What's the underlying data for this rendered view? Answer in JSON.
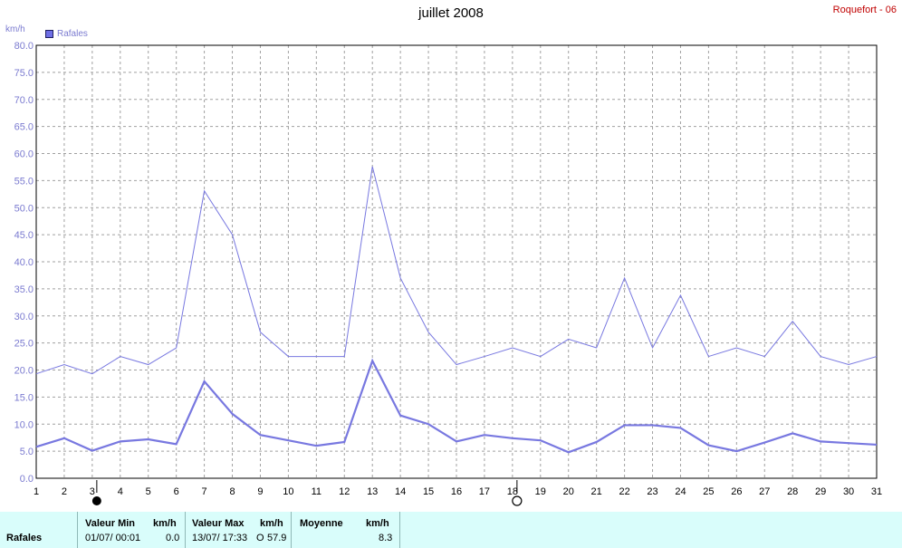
{
  "header": {
    "title": "juillet 2008",
    "station": "Roquefort - 06",
    "unit": "km/h",
    "legend": "Rafales"
  },
  "colors": {
    "series": "#7878e0",
    "grid": "#a0a0a0",
    "axis_text": "#7b7bd0",
    "station_text": "#c00000",
    "stats_bg": "#d9fdfb"
  },
  "chart_data": {
    "type": "line",
    "title": "juillet 2008",
    "ylabel": "km/h",
    "legend": [
      "Rafales"
    ],
    "x": [
      1,
      2,
      3,
      4,
      5,
      6,
      7,
      8,
      9,
      10,
      11,
      12,
      13,
      14,
      15,
      16,
      17,
      18,
      19,
      20,
      21,
      22,
      23,
      24,
      25,
      26,
      27,
      28,
      29,
      30,
      31
    ],
    "xlim": [
      1,
      31
    ],
    "ylim": [
      0,
      80
    ],
    "yticks": [
      "0.0",
      "5.0",
      "10.0",
      "15.0",
      "20.0",
      "25.0",
      "30.0",
      "35.0",
      "40.0",
      "45.0",
      "50.0",
      "55.0",
      "60.0",
      "65.0",
      "70.0",
      "75.0",
      "80.0"
    ],
    "series": [
      {
        "role": "max",
        "values": [
          19.3,
          21.0,
          19.3,
          22.5,
          21.0,
          24.1,
          53.1,
          45.0,
          27.0,
          22.5,
          22.5,
          22.5,
          57.6,
          37.0,
          27.0,
          21.0,
          22.5,
          24.1,
          22.5,
          25.7,
          24.1,
          37.0,
          24.1,
          33.8,
          22.5,
          24.1,
          22.5,
          29.0,
          22.5,
          21.0,
          22.5
        ]
      },
      {
        "role": "mean",
        "values": [
          5.8,
          7.4,
          5.1,
          6.8,
          7.2,
          6.3,
          17.9,
          11.9,
          8.0,
          7.0,
          6.0,
          6.7,
          21.7,
          11.6,
          10.0,
          6.8,
          8.0,
          7.4,
          7.0,
          4.8,
          6.7,
          9.8,
          9.8,
          9.3,
          6.1,
          5.0,
          6.6,
          8.3,
          6.8,
          6.5,
          6.2
        ]
      }
    ],
    "moon_phases": [
      {
        "day": 3,
        "phase": "new-moon"
      },
      {
        "day": 18,
        "phase": "full-moon"
      }
    ]
  },
  "stats": {
    "series_label": "Rafales",
    "min_header": "Valeur Min",
    "min_unit": "km/h",
    "min_date": "01/07/  00:01",
    "min_value": "0.0",
    "max_header": "Valeur Max",
    "max_unit": "km/h",
    "max_date": "13/07/  17:33",
    "max_dir": "O",
    "max_value": "57.9",
    "mean_header": "Moyenne",
    "mean_unit": "km/h",
    "mean_value": "8.3"
  }
}
